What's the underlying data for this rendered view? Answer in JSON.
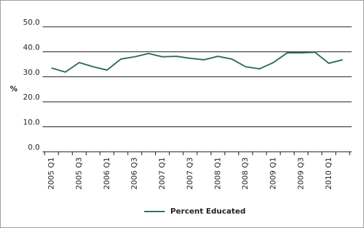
{
  "chart_data": {
    "type": "line",
    "y_label": "%",
    "categories": [
      "2005 Q1",
      null,
      "2005 Q3",
      null,
      "2006 Q1",
      null,
      "2006 Q3",
      null,
      "2007 Q1",
      null,
      "2007 Q3",
      null,
      "2008 Q1",
      null,
      "2008 Q3",
      null,
      "2009 Q1",
      null,
      "2009 Q3",
      null,
      "2010 Q1",
      null
    ],
    "series": [
      {
        "name": "Percent Educated",
        "color": "#2f6e57",
        "values": [
          33.5,
          31.9,
          35.7,
          34.0,
          32.7,
          37.1,
          38.0,
          39.3,
          38.0,
          38.2,
          37.4,
          36.8,
          38.2,
          37.1,
          34.0,
          33.2,
          35.7,
          39.6,
          39.6,
          39.8,
          35.4,
          36.8
        ]
      }
    ],
    "ylim": [
      0,
      50
    ],
    "yticks": [
      {
        "value": 0,
        "label": "0.0"
      },
      {
        "value": 10,
        "label": "10.0"
      },
      {
        "value": 20,
        "label": "20.0"
      },
      {
        "value": 30,
        "label": "30.0"
      },
      {
        "value": 40,
        "label": "40.0"
      },
      {
        "value": 50,
        "label": "50.0"
      }
    ],
    "grid": true
  }
}
